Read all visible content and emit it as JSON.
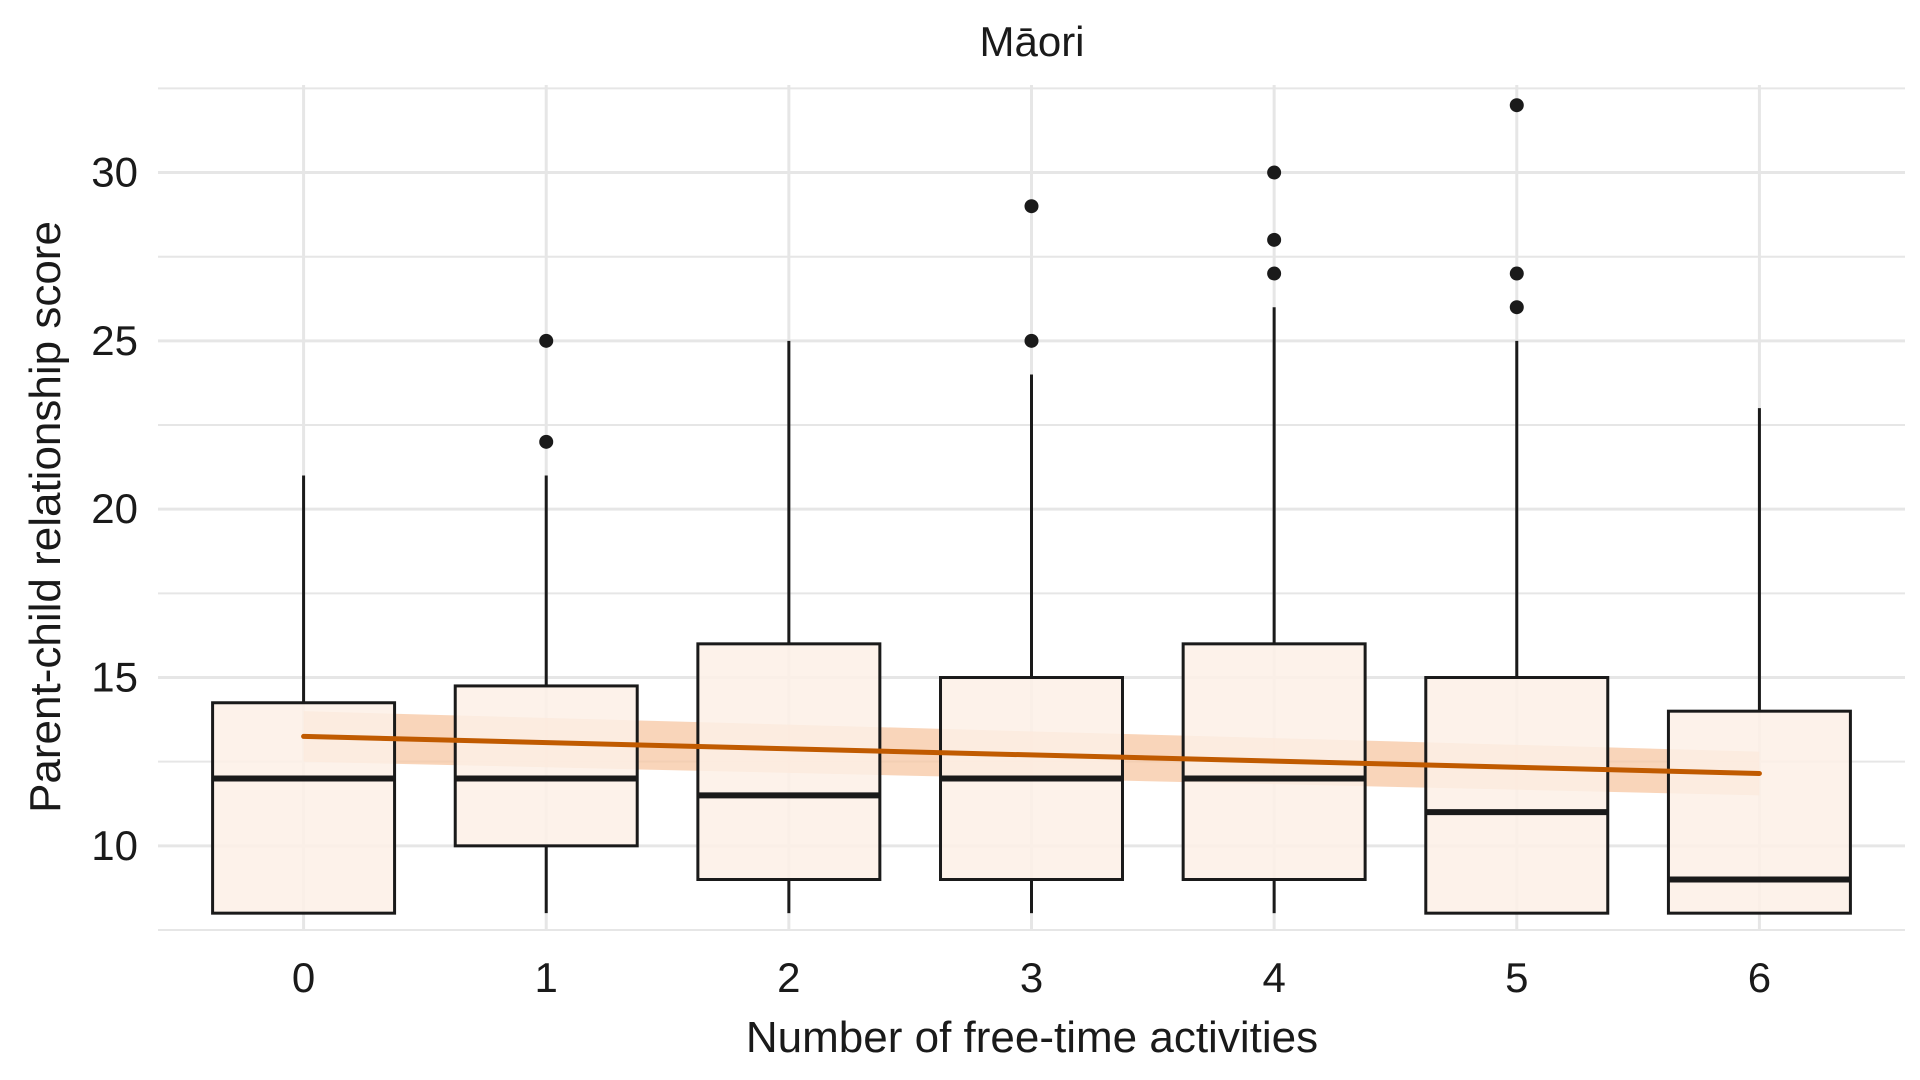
{
  "chart_data": {
    "type": "box",
    "title": "Māori",
    "xlabel": "Number of free-time activities",
    "ylabel": "Parent-child relationship score",
    "categories": [
      "0",
      "1",
      "2",
      "3",
      "4",
      "5",
      "6"
    ],
    "x_ticks": [
      "0",
      "1",
      "2",
      "3",
      "4",
      "5",
      "6"
    ],
    "y_ticks": [
      "10",
      "15",
      "20",
      "25",
      "30"
    ],
    "xlim": [
      -0.6,
      6.6
    ],
    "ylim": [
      7.5,
      32.6
    ],
    "grid": true,
    "legend": "none",
    "boxes": [
      {
        "category": "0",
        "whisker_low": 8,
        "q1": 8,
        "median": 12,
        "q3": 14.25,
        "whisker_high": 21,
        "outliers": []
      },
      {
        "category": "1",
        "whisker_low": 8,
        "q1": 10,
        "median": 12,
        "q3": 14.75,
        "whisker_high": 21,
        "outliers": [
          22,
          25
        ]
      },
      {
        "category": "2",
        "whisker_low": 8,
        "q1": 9,
        "median": 11.5,
        "q3": 16,
        "whisker_high": 25,
        "outliers": []
      },
      {
        "category": "3",
        "whisker_low": 8,
        "q1": 9,
        "median": 12,
        "q3": 15,
        "whisker_high": 24,
        "outliers": [
          25,
          29
        ]
      },
      {
        "category": "4",
        "whisker_low": 8,
        "q1": 9,
        "median": 12,
        "q3": 16,
        "whisker_high": 26,
        "outliers": [
          27,
          28,
          30
        ]
      },
      {
        "category": "5",
        "whisker_low": 8,
        "q1": 8,
        "median": 11,
        "q3": 15,
        "whisker_high": 25,
        "outliers": [
          26,
          27,
          32
        ]
      },
      {
        "category": "6",
        "whisker_low": 8,
        "q1": 8,
        "median": 9,
        "q3": 14,
        "whisker_high": 23,
        "outliers": []
      }
    ],
    "trend": {
      "x": [
        0,
        6
      ],
      "y": [
        13.25,
        12.15
      ],
      "ci_low": [
        12.5,
        11.5
      ],
      "ci_high": [
        14.0,
        12.8
      ]
    },
    "colors": {
      "box_fill": "#fdf0e6",
      "box_stroke": "#1a1a1a",
      "trend_line": "#c05a00",
      "trend_ci": "#f7c7a3",
      "grid": "#e6e6e6"
    }
  }
}
